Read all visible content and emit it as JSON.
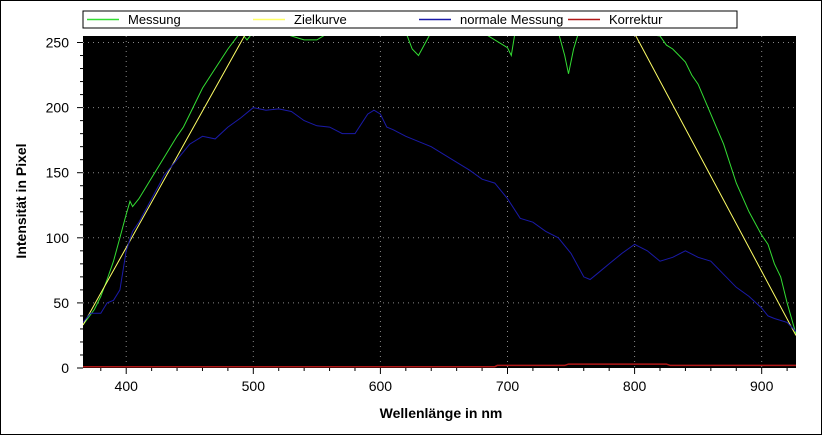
{
  "chart_data": {
    "type": "line",
    "title": "",
    "xlabel": "Wellenlänge in nm",
    "ylabel": "Intensität in Pixel",
    "xlim": [
      366,
      927
    ],
    "ylim": [
      0,
      255
    ],
    "xticks": [
      400,
      500,
      600,
      700,
      800,
      900
    ],
    "yticks": [
      0,
      50,
      100,
      150,
      200,
      250
    ],
    "grid": true,
    "legend_position": "top",
    "background": "#000000",
    "series": [
      {
        "name": "Messung",
        "color": "#33dd33",
        "x": [
          366,
          375,
          380,
          385,
          390,
          395,
          400,
          403,
          405,
          410,
          415,
          420,
          430,
          440,
          445,
          450,
          460,
          470,
          480,
          490,
          495,
          500,
          520,
          540,
          550,
          560,
          600,
          620,
          625,
          630,
          640,
          680,
          700,
          703,
          706,
          710,
          740,
          745,
          748,
          752,
          756,
          760,
          800,
          820,
          825,
          830,
          835,
          840,
          845,
          850,
          860,
          870,
          880,
          890,
          900,
          905,
          910,
          915,
          920,
          927
        ],
        "y": [
          33,
          45,
          55,
          68,
          82,
          100,
          118,
          128,
          124,
          130,
          138,
          146,
          162,
          178,
          185,
          195,
          215,
          230,
          245,
          258,
          252,
          258,
          258,
          252,
          252,
          258,
          258,
          258,
          245,
          240,
          258,
          258,
          246,
          240,
          258,
          258,
          258,
          240,
          226,
          245,
          258,
          258,
          258,
          255,
          248,
          245,
          240,
          235,
          225,
          218,
          195,
          172,
          142,
          120,
          102,
          95,
          80,
          70,
          50,
          26
        ]
      },
      {
        "name": "Zielkurve",
        "color": "#ffff66",
        "x": [
          366,
          493,
          500,
          795,
          801,
          927
        ],
        "y": [
          33,
          255,
          262,
          262,
          255,
          25
        ]
      },
      {
        "name": "normale Messung",
        "color": "#1a1aa8",
        "x": [
          366,
          372,
          380,
          385,
          390,
          395,
          400,
          405,
          410,
          420,
          430,
          440,
          450,
          460,
          470,
          480,
          490,
          500,
          510,
          520,
          530,
          540,
          550,
          560,
          570,
          580,
          590,
          595,
          600,
          605,
          610,
          620,
          640,
          660,
          670,
          680,
          690,
          700,
          710,
          720,
          730,
          740,
          750,
          760,
          765,
          770,
          780,
          790,
          800,
          810,
          820,
          830,
          840,
          850,
          860,
          870,
          880,
          890,
          900,
          905,
          910,
          920,
          927
        ],
        "y": [
          35,
          42,
          42,
          50,
          52,
          60,
          90,
          105,
          112,
          130,
          148,
          160,
          172,
          178,
          176,
          185,
          192,
          200,
          198,
          199,
          197,
          190,
          186,
          185,
          180,
          180,
          195,
          198,
          195,
          185,
          183,
          178,
          170,
          158,
          152,
          145,
          142,
          130,
          115,
          112,
          105,
          100,
          88,
          70,
          68,
          72,
          80,
          88,
          95,
          90,
          82,
          85,
          90,
          85,
          82,
          72,
          62,
          55,
          46,
          40,
          38,
          35,
          28
        ]
      },
      {
        "name": "Korrektur",
        "color": "#b01818",
        "x": [
          366,
          690,
          692,
          745,
          748,
          825,
          828,
          927
        ],
        "y": [
          1,
          1,
          2,
          2,
          3,
          3,
          2,
          2
        ]
      }
    ]
  }
}
